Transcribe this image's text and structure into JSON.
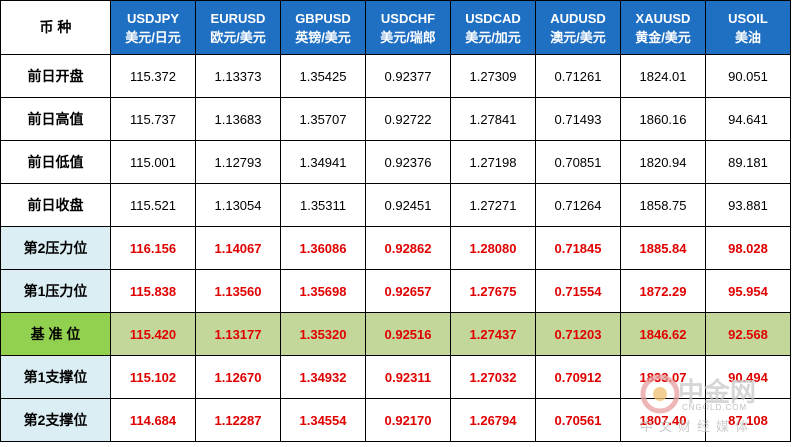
{
  "header": {
    "label": "币 种",
    "columns": [
      {
        "code": "USDJPY",
        "name": "美元/日元"
      },
      {
        "code": "EURUSD",
        "name": "欧元/美元"
      },
      {
        "code": "GBPUSD",
        "name": "英镑/美元"
      },
      {
        "code": "USDCHF",
        "name": "美元/瑞郎"
      },
      {
        "code": "USDCAD",
        "name": "美元/加元"
      },
      {
        "code": "AUDUSD",
        "name": "澳元/美元"
      },
      {
        "code": "XAUUSD",
        "name": "黄金/美元"
      },
      {
        "code": "USOIL",
        "name": "美油"
      }
    ]
  },
  "rows": [
    {
      "label": "前日开盘",
      "values": [
        "115.372",
        "1.13373",
        "1.35425",
        "0.92377",
        "1.27309",
        "0.71261",
        "1824.01",
        "90.051"
      ]
    },
    {
      "label": "前日高值",
      "values": [
        "115.737",
        "1.13683",
        "1.35707",
        "0.92722",
        "1.27841",
        "0.71493",
        "1860.16",
        "94.641"
      ]
    },
    {
      "label": "前日低值",
      "values": [
        "115.001",
        "1.12793",
        "1.34941",
        "0.92376",
        "1.27198",
        "0.70851",
        "1820.94",
        "89.181"
      ]
    },
    {
      "label": "前日收盘",
      "values": [
        "115.521",
        "1.13054",
        "1.35311",
        "0.92451",
        "1.27271",
        "0.71264",
        "1858.75",
        "93.881"
      ]
    },
    {
      "label": "第2压力位",
      "values": [
        "116.156",
        "1.14067",
        "1.36086",
        "0.92862",
        "1.28080",
        "0.71845",
        "1885.84",
        "98.028"
      ]
    },
    {
      "label": "第1压力位",
      "values": [
        "115.838",
        "1.13560",
        "1.35698",
        "0.92657",
        "1.27675",
        "0.71554",
        "1872.29",
        "95.954"
      ]
    },
    {
      "label": "基 准 位",
      "values": [
        "115.420",
        "1.13177",
        "1.35320",
        "0.92516",
        "1.27437",
        "0.71203",
        "1846.62",
        "92.568"
      ]
    },
    {
      "label": "第1支撑位",
      "values": [
        "115.102",
        "1.12670",
        "1.34932",
        "0.92311",
        "1.27032",
        "0.70912",
        "1833.07",
        "90.494"
      ]
    },
    {
      "label": "第2支撑位",
      "values": [
        "114.684",
        "1.12287",
        "1.34554",
        "0.92170",
        "1.26794",
        "0.70561",
        "1807.40",
        "87.108"
      ]
    }
  ],
  "watermark": {
    "logo": "中金网",
    "url": "CNGOLD.COM",
    "slogan": "中文财经媒体"
  }
}
